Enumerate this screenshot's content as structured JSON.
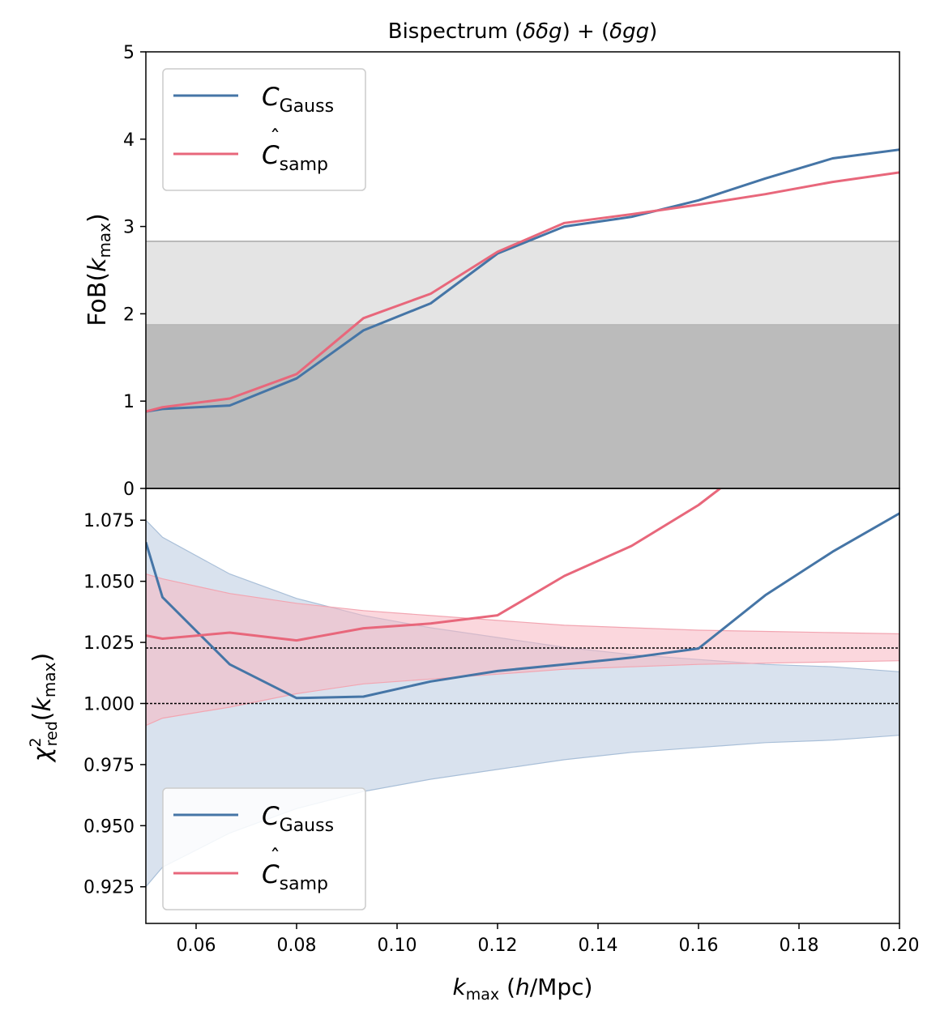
{
  "chart_data": [
    {
      "type": "line",
      "title": "Bispectrum (δδg) + (δgg)",
      "xlabel": "",
      "ylabel": "FoB(k_max)",
      "xlim": [
        0.05,
        0.2
      ],
      "ylim": [
        0,
        5
      ],
      "yticks": [
        0,
        1,
        2,
        3,
        4,
        5
      ],
      "ytick_labels": [
        "0",
        "1",
        "2",
        "3",
        "4",
        "5"
      ],
      "grid": false,
      "legend_position": "top-left",
      "bands": [
        {
          "y0": 0,
          "y1": 1.88,
          "color": "#bbbbbb"
        },
        {
          "y0": 1.88,
          "y1": 2.83,
          "color": "#e4e4e4"
        }
      ],
      "series": [
        {
          "name": "C_Gauss",
          "color": "#4575a6",
          "x": [
            0.05,
            0.0533,
            0.0667,
            0.08,
            0.0933,
            0.1067,
            0.12,
            0.1333,
            0.1467,
            0.16,
            0.1733,
            0.1867,
            0.2
          ],
          "y": [
            0.88,
            0.91,
            0.95,
            1.26,
            1.81,
            2.12,
            2.69,
            3.0,
            3.11,
            3.3,
            3.55,
            3.78,
            3.88
          ]
        },
        {
          "name": "Ĉ_samp",
          "color": "#e8677b",
          "x": [
            0.05,
            0.0533,
            0.0667,
            0.08,
            0.0933,
            0.1067,
            0.12,
            0.1333,
            0.1467,
            0.16,
            0.1733,
            0.1867,
            0.2
          ],
          "y": [
            0.88,
            0.93,
            1.03,
            1.31,
            1.95,
            2.23,
            2.71,
            3.04,
            3.14,
            3.25,
            3.37,
            3.51,
            3.62
          ]
        }
      ]
    },
    {
      "type": "line",
      "title": "",
      "xlabel": "k_max (h/Mpc)",
      "ylabel": "χ²_red(k_max)",
      "xlim": [
        0.05,
        0.2
      ],
      "ylim": [
        0.91,
        1.088
      ],
      "xticks": [
        0.06,
        0.08,
        0.1,
        0.12,
        0.14,
        0.16,
        0.18,
        0.2
      ],
      "xtick_labels": [
        "0.06",
        "0.08",
        "0.10",
        "0.12",
        "0.14",
        "0.16",
        "0.18",
        "0.20"
      ],
      "yticks": [
        0.925,
        0.95,
        0.975,
        1.0,
        1.025,
        1.05,
        1.075
      ],
      "ytick_labels": [
        "0.925",
        "0.950",
        "0.975",
        "1.000",
        "1.025",
        "1.050",
        "1.075"
      ],
      "grid": false,
      "legend_position": "bottom-left",
      "reference_lines": [
        1.0,
        1.0227
      ],
      "series": [
        {
          "name": "C_Gauss",
          "color": "#4575a6",
          "x": [
            0.05,
            0.0533,
            0.0667,
            0.08,
            0.0933,
            0.1067,
            0.12,
            0.1333,
            0.1467,
            0.16,
            0.1733,
            0.1867,
            0.2
          ],
          "y": [
            1.066,
            1.0435,
            1.016,
            1.0022,
            1.0028,
            1.009,
            1.0133,
            1.016,
            1.0188,
            1.0225,
            1.0443,
            1.0621,
            1.0778
          ],
          "band_x": [
            0.05,
            0.0533,
            0.0667,
            0.08,
            0.0933,
            0.1067,
            0.12,
            0.1333,
            0.1467,
            0.16,
            0.1733,
            0.1867,
            0.2
          ],
          "band_lower": [
            0.925,
            0.933,
            0.947,
            0.957,
            0.964,
            0.969,
            0.973,
            0.977,
            0.98,
            0.982,
            0.984,
            0.985,
            0.987
          ],
          "band_upper": [
            1.075,
            1.068,
            1.053,
            1.043,
            1.036,
            1.031,
            1.027,
            1.023,
            1.02,
            1.018,
            1.016,
            1.015,
            1.013
          ]
        },
        {
          "name": "Ĉ_samp",
          "color": "#e8677b",
          "x": [
            0.05,
            0.0533,
            0.0667,
            0.08,
            0.0933,
            0.1067,
            0.12,
            0.1333,
            0.1467,
            0.16,
            0.1643
          ],
          "y": [
            1.0278,
            1.0265,
            1.029,
            1.0258,
            1.0308,
            1.0327,
            1.0361,
            1.0522,
            1.0645,
            1.0812,
            1.088
          ],
          "band_x": [
            0.05,
            0.0533,
            0.0667,
            0.08,
            0.0933,
            0.1067,
            0.12,
            0.1333,
            0.1467,
            0.16,
            0.1733,
            0.1867,
            0.2
          ],
          "band_lower": [
            0.991,
            0.994,
            0.9985,
            1.004,
            1.008,
            1.01,
            1.012,
            1.014,
            1.015,
            1.016,
            1.0165,
            1.017,
            1.0175
          ],
          "band_upper": [
            1.053,
            1.051,
            1.045,
            1.041,
            1.038,
            1.036,
            1.034,
            1.032,
            1.031,
            1.03,
            1.0295,
            1.029,
            1.0285
          ]
        }
      ]
    }
  ]
}
